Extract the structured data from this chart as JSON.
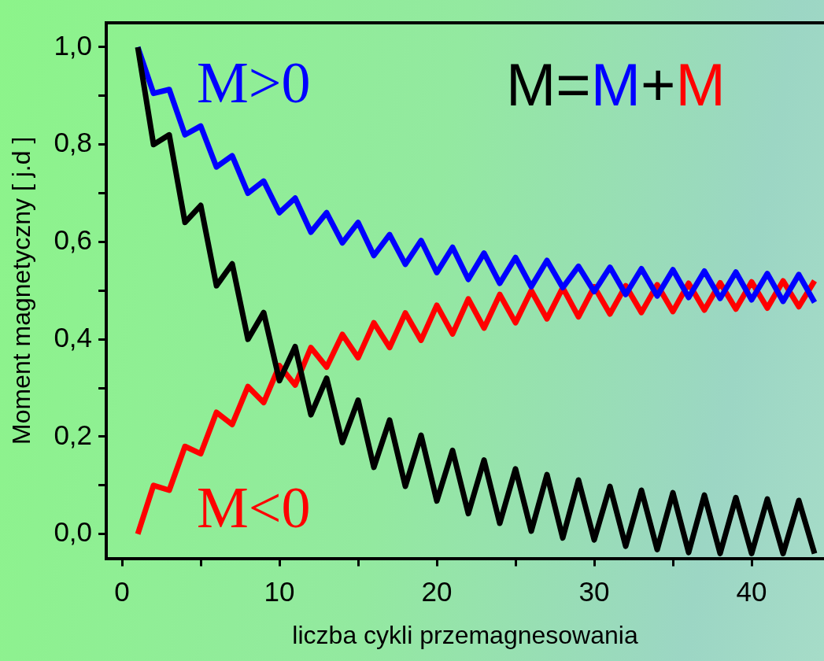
{
  "chart_data": {
    "type": "line",
    "xlabel": "liczba cykli przemagnesowania",
    "ylabel": "Moment magnetyczny [ j.d ]",
    "x": [
      1,
      2,
      3,
      4,
      5,
      6,
      7,
      8,
      9,
      10,
      11,
      12,
      13,
      14,
      15,
      16,
      17,
      18,
      19,
      20,
      21,
      22,
      23,
      24,
      25,
      26,
      27,
      28,
      29,
      30,
      31,
      32,
      33,
      34,
      35,
      36,
      37,
      38,
      39,
      40,
      41,
      42,
      43,
      44
    ],
    "series": [
      {
        "color": "#000000",
        "values": [
          1.0,
          0.8,
          0.82,
          0.64,
          0.675,
          0.51,
          0.555,
          0.4,
          0.455,
          0.315,
          0.385,
          0.245,
          0.32,
          0.188,
          0.275,
          0.137,
          0.234,
          0.098,
          0.203,
          0.068,
          0.172,
          0.042,
          0.152,
          0.022,
          0.134,
          0.006,
          0.122,
          -0.008,
          0.111,
          -0.012,
          0.098,
          -0.025,
          0.09,
          -0.032,
          0.085,
          -0.038,
          0.08,
          -0.04,
          0.075,
          -0.04,
          0.072,
          -0.04,
          0.069,
          -0.04
        ]
      },
      {
        "name": "M>0",
        "color": "#0000ff",
        "values": [
          1.0,
          0.905,
          0.913,
          0.82,
          0.838,
          0.754,
          0.777,
          0.7,
          0.725,
          0.66,
          0.69,
          0.62,
          0.66,
          0.598,
          0.64,
          0.572,
          0.615,
          0.554,
          0.603,
          0.537,
          0.589,
          0.523,
          0.577,
          0.515,
          0.568,
          0.508,
          0.562,
          0.506,
          0.55,
          0.498,
          0.548,
          0.492,
          0.545,
          0.489,
          0.543,
          0.486,
          0.54,
          0.484,
          0.538,
          0.481,
          0.535,
          0.478,
          0.533,
          0.476
        ]
      },
      {
        "name": "M<0",
        "color": "#ff0000",
        "values": [
          0.0,
          0.1,
          0.09,
          0.18,
          0.165,
          0.25,
          0.225,
          0.303,
          0.27,
          0.346,
          0.306,
          0.383,
          0.343,
          0.41,
          0.362,
          0.434,
          0.383,
          0.454,
          0.398,
          0.47,
          0.411,
          0.483,
          0.423,
          0.492,
          0.434,
          0.5,
          0.442,
          0.506,
          0.446,
          0.508,
          0.452,
          0.51,
          0.455,
          0.512,
          0.457,
          0.515,
          0.46,
          0.516,
          0.462,
          0.518,
          0.464,
          0.52,
          0.467,
          0.52
        ]
      }
    ],
    "annotations": [
      "M=M+M"
    ],
    "xlim": [
      -1,
      44.6
    ],
    "ylim": [
      -0.05,
      1.05
    ],
    "xticks": [
      0,
      {
        "value": 5,
        "label": null
      },
      10,
      {
        "value": 15,
        "label": null
      },
      20,
      {
        "value": 25,
        "label": null
      },
      30,
      {
        "value": 35,
        "label": null
      },
      40
    ],
    "yticks": [
      {
        "value": 0,
        "label": "0,0"
      },
      {
        "value": 0.1,
        "label": null
      },
      {
        "value": 0.2,
        "label": "0,2"
      },
      {
        "value": 0.3,
        "label": null
      },
      {
        "value": 0.4,
        "label": "0,4"
      },
      {
        "value": 0.5,
        "label": null
      },
      {
        "value": 0.6,
        "label": "0,6"
      },
      {
        "value": 0.7,
        "label": null
      },
      {
        "value": 0.8,
        "label": "0,8"
      },
      {
        "value": 0.9,
        "label": null
      },
      {
        "value": 1.0,
        "label": "1,0"
      }
    ],
    "grid": false,
    "legend": false,
    "marker": "none",
    "line_style": "solid"
  }
}
